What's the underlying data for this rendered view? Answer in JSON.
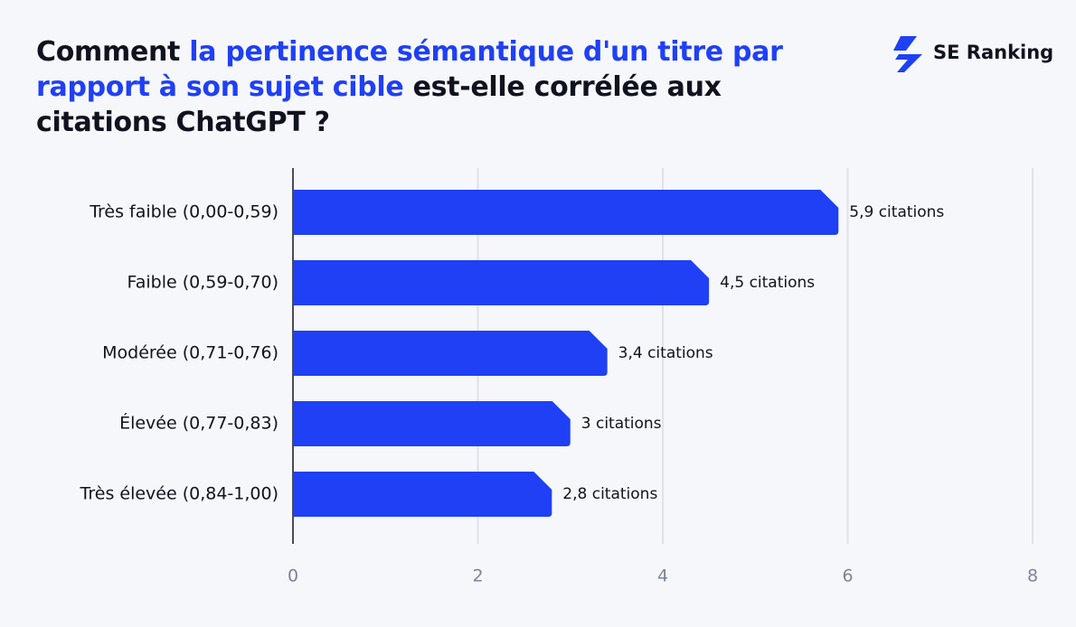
{
  "chart_data": {
    "type": "bar",
    "orientation": "horizontal",
    "title_parts": [
      "Comment ",
      "la pertinence sémantique d'un titre par rapport à son sujet cible",
      " est-elle corrélée aux citations ChatGPT ?"
    ],
    "logo": "SE Ranking",
    "categories": [
      "Très faible (0,00-0,59)",
      "Faible (0,59-0,70)",
      "Modérée (0,71-0,76)",
      "Élevée (0,77-0,83)",
      "Très élevée (0,84-1,00)"
    ],
    "values": [
      5.9,
      4.5,
      3.4,
      3,
      2.8
    ],
    "value_labels": [
      "5,9 citations",
      "4,5 citations",
      "3,4 citations",
      "3 citations",
      "2,8 citations"
    ],
    "color": "#1f40f5",
    "xlim": [
      0,
      8
    ],
    "xticks": [
      0,
      2,
      4,
      6,
      8
    ],
    "grid": true
  }
}
